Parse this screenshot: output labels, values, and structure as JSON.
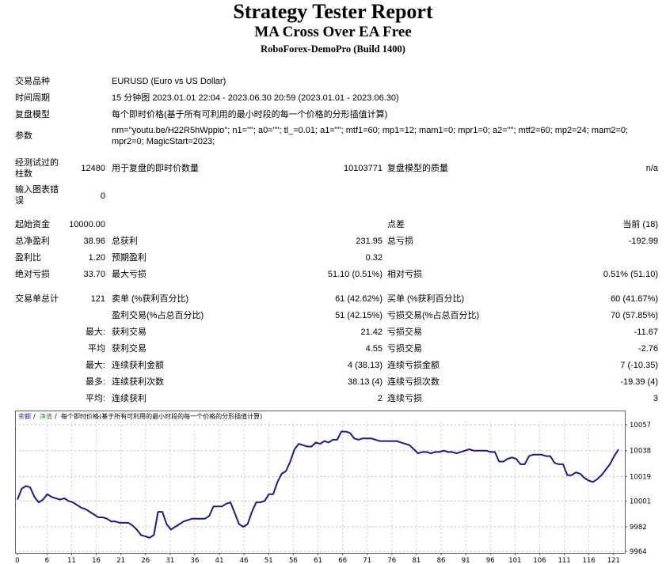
{
  "header": {
    "title": "Strategy Tester Report",
    "subtitle": "MA Cross Over EA Free",
    "build": "RoboForex-DemoPro (Build 1400)"
  },
  "settings": {
    "symbol_label": "交易品种",
    "symbol_value": "EURUSD (Euro vs US Dollar)",
    "period_label": "时间周期",
    "period_value": "15 分钟图 2023.01.01 22:04 - 2023.06.30 20:59 (2023.01.01 - 2023.06.30)",
    "model_label": "复盘模型",
    "model_value": "每个即时价格(基于所有可利用的最小时段的每一个价格的分形插值计算)",
    "params_label": "参数",
    "params_value": "nm=\"youtu.be/H22R5hWppio\"; n1=\"\"; a0=\"\"; tl_=0.01; a1=\"\"; mtf1=60; mp1=12; mam1=0; mpr1=0; a2=\"\"; mtf2=60; mp2=24; mam2=0; mpr2=0; MagicStart=2023;"
  },
  "bars_row": {
    "bars_label": "经测试过的柱数",
    "bars_value": "12480",
    "ticks_label": "用于复盘的即时价数量",
    "ticks_value": "10103771",
    "quality_label": "复盘模型的质量",
    "quality_value": "n/a"
  },
  "errors_row": {
    "label": "输入图表错误",
    "value": "0"
  },
  "summary": {
    "initial_deposit_label": "起始资金",
    "initial_deposit_value": "10000.00",
    "spread_label": "点差",
    "spread_value": "当前 (18)",
    "net_profit_label": "总净盈利",
    "net_profit_value": "38.96",
    "gross_profit_label": "总获利",
    "gross_profit_value": "231.95",
    "gross_loss_label": "总亏损",
    "gross_loss_value": "-192.99",
    "profit_factor_label": "盈利比",
    "profit_factor_value": "1.20",
    "expected_payoff_label": "预期盈利",
    "expected_payoff_value": "0.32",
    "abs_drawdown_label": "绝对亏损",
    "abs_drawdown_value": "33.70",
    "max_drawdown_label": "最大亏损",
    "max_drawdown_value": "51.10 (0.51%)",
    "rel_drawdown_label": "相对亏损",
    "rel_drawdown_value": "0.51% (51.10)"
  },
  "trades": {
    "total_label": "交易单总计",
    "total_value": "121",
    "short_label": "卖单 (%获利百分比)",
    "short_value": "61 (42.62%)",
    "long_label": "买单 (%获利百分比)",
    "long_value": "60 (41.67%)",
    "profit_trades_label": "盈利交易(%占总百分比)",
    "profit_trades_value": "51 (42.15%)",
    "loss_trades_label": "亏损交易(%占总百分比)",
    "loss_trades_value": "70 (57.85%)",
    "largest_prefix": "最大:",
    "largest_profit_label": "获利交易",
    "largest_profit_value": "21.42",
    "largest_loss_label": "亏损交易",
    "largest_loss_value": "-11.67",
    "average_prefix": "平均",
    "average_profit_label": "获利交易",
    "average_profit_value": "4.55",
    "average_loss_label": "亏损交易",
    "average_loss_value": "-2.76",
    "max_consec_prefix": "最大:",
    "max_consec_wins_label": "连续获利金额",
    "max_consec_wins_value": "4 (38.13)",
    "max_consec_losses_label": "连续亏损金额",
    "max_consec_losses_value": "7 (-10.35)",
    "maximal_prefix": "最多:",
    "maximal_wins_label": "连续获利次数",
    "maximal_wins_value": "38.13 (4)",
    "maximal_losses_label": "连续亏损次数",
    "maximal_losses_value": "-19.39 (4)",
    "avg_consec_prefix": "平均:",
    "avg_consec_wins_label": "连续获利",
    "avg_consec_wins_value": "2",
    "avg_consec_losses_label": "连续亏损",
    "avg_consec_losses_value": "3"
  },
  "chart_data": {
    "type": "line",
    "legend_balance": "余额",
    "legend_separator": "/",
    "legend_equity": "净值",
    "legend_model": "每个即时价格(基于所有可利用的最小时段的每一个价格的分形插值计算)",
    "yticks": [
      "10057",
      "10038",
      "10019",
      "10001",
      "9982",
      "9964"
    ],
    "ylim": [
      9964,
      10057
    ],
    "xticks": [
      "0",
      "6",
      "11",
      "16",
      "21",
      "26",
      "31",
      "36",
      "41",
      "46",
      "51",
      "56",
      "61",
      "66",
      "71",
      "76",
      "81",
      "86",
      "91",
      "96",
      "101",
      "106",
      "111",
      "116",
      "121"
    ],
    "xlim": [
      0,
      122
    ],
    "grid": true,
    "line_color": "#1a1a8c",
    "values": [
      10002,
      10010,
      10012,
      10011,
      10004,
      10000,
      10002,
      10006,
      10004,
      10003,
      10002,
      10003,
      10001,
      10000,
      9998,
      9996,
      9995,
      9993,
      9991,
      9989,
      9989,
      9988,
      9986,
      9986,
      9985,
      9985,
      9985,
      9983,
      9980,
      9976,
      9975,
      9974,
      9976,
      9993,
      9993,
      9984,
      9980,
      9982,
      9984,
      9986,
      9987,
      9988,
      9988,
      9988,
      9988,
      9990,
      9997,
      9997,
      9997,
      9999,
      10000,
      9992,
      9984,
      9982,
      9984,
      9993,
      10000,
      10000,
      10001,
      10006,
      10006,
      10015,
      10021,
      10023,
      10030,
      10039,
      10043,
      10042,
      10041,
      10041,
      10044,
      10043,
      10045,
      10044,
      10046,
      10046,
      10052,
      10052,
      10051,
      10047,
      10046,
      10047,
      10047,
      10047,
      10046,
      10045,
      10045,
      10045,
      10045,
      10045,
      10044,
      10043,
      10042,
      10039,
      10036,
      10037,
      10037,
      10036,
      10037,
      10037,
      10038,
      10037,
      10037,
      10036,
      10037,
      10038,
      10039,
      10038,
      10038,
      10038,
      10038,
      10037,
      10037,
      10030,
      10030,
      10032,
      10033,
      10032,
      10028,
      10028,
      10034,
      10035,
      10035,
      10035,
      10034,
      10034,
      10029,
      10028,
      10028,
      10020,
      10020,
      10022,
      10021,
      10018,
      10016,
      10015,
      10017,
      10020,
      10024,
      10028,
      10034,
      10039
    ]
  }
}
